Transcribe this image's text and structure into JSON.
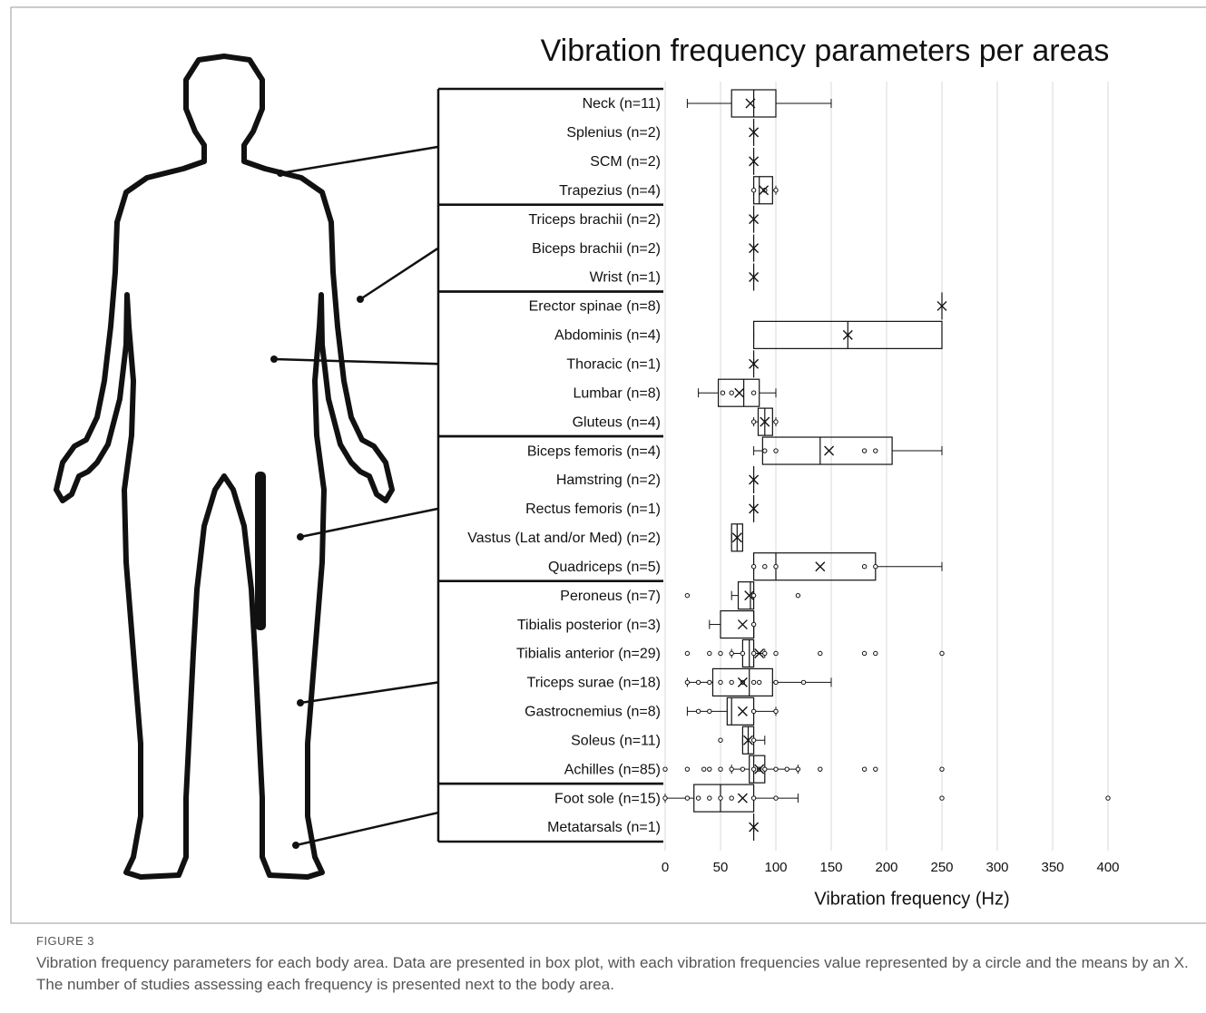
{
  "figure": {
    "label": "FIGURE 3",
    "caption": "Vibration frequency parameters for each body area. Data are presented in box plot, with each vibration frequencies value represented by a circle and the means by an X. The number of studies assessing each frequency is presented next to the body area."
  },
  "chart_data": {
    "type": "box",
    "title": "Vibration frequency parameters per areas",
    "x_label": "Vibration frequency (Hz)",
    "orientation": "horizontal",
    "color": "#111111",
    "grid": true,
    "xlim": [
      0,
      430
    ],
    "xticks": [
      0,
      50,
      100,
      150,
      200,
      250,
      300,
      350,
      400
    ],
    "categories": [
      "Neck (n=11)",
      "Splenius (n=2)",
      "SCM (n=2)",
      "Trapezius (n=4)",
      "Triceps brachii (n=2)",
      "Biceps brachii (n=2)",
      "Wrist (n=1)",
      "Erector spinae (n=8)",
      "Abdominis (n=4)",
      "Thoracic (n=1)",
      "Lumbar (n=8)",
      "Gluteus (n=4)",
      "Biceps femoris (n=4)",
      "Hamstring (n=2)",
      "Rectus femoris (n=1)",
      "Vastus (Lat and/or Med) (n=2)",
      "Quadriceps (n=5)",
      "Peroneus (n=7)",
      "Tibialis posterior (n=3)",
      "Tibialis anterior (n=29)",
      "Triceps surae (n=18)",
      "Gastrocnemius (n=8)",
      "Soleus (n=11)",
      "Achilles (n=85)",
      "Foot sole (n=15)",
      "Metatarsals (n=1)"
    ],
    "boxes": [
      {
        "min": 20,
        "q1": 60,
        "median": 80,
        "q3": 100,
        "max": 150,
        "mean": 77,
        "points": []
      },
      {
        "min": 80,
        "q1": 80,
        "median": 80,
        "q3": 80,
        "max": 80,
        "mean": 80,
        "points": []
      },
      {
        "min": 80,
        "q1": 80,
        "median": 80,
        "q3": 80,
        "max": 80,
        "mean": 80,
        "points": []
      },
      {
        "min": 80,
        "q1": 80,
        "median": 85,
        "q3": 97,
        "max": 100,
        "mean": 89,
        "points": [
          80,
          90,
          100
        ]
      },
      {
        "min": 80,
        "q1": 80,
        "median": 80,
        "q3": 80,
        "max": 80,
        "mean": 80,
        "points": []
      },
      {
        "min": 80,
        "q1": 80,
        "median": 80,
        "q3": 80,
        "max": 80,
        "mean": 80,
        "points": []
      },
      {
        "min": 80,
        "q1": 80,
        "median": 80,
        "q3": 80,
        "max": 80,
        "mean": 80,
        "points": []
      },
      {
        "min": 250,
        "q1": 250,
        "median": 250,
        "q3": 250,
        "max": 250,
        "mean": 250,
        "points": []
      },
      {
        "min": 80,
        "q1": 80,
        "median": 165,
        "q3": 250,
        "max": 250,
        "mean": 165,
        "points": []
      },
      {
        "min": 80,
        "q1": 80,
        "median": 80,
        "q3": 80,
        "max": 80,
        "mean": 80,
        "points": []
      },
      {
        "min": 30,
        "q1": 48,
        "median": 71,
        "q3": 85,
        "max": 100,
        "mean": 67,
        "points": [
          52,
          60,
          80
        ]
      },
      {
        "min": 80,
        "q1": 84,
        "median": 90,
        "q3": 97,
        "max": 100,
        "mean": 90,
        "points": [
          80,
          100
        ]
      },
      {
        "min": 80,
        "q1": 88,
        "median": 140,
        "q3": 205,
        "max": 250,
        "mean": 148,
        "points": [
          90,
          100,
          180,
          190
        ]
      },
      {
        "min": 80,
        "q1": 80,
        "median": 80,
        "q3": 80,
        "max": 80,
        "mean": 80,
        "points": []
      },
      {
        "min": 80,
        "q1": 80,
        "median": 80,
        "q3": 80,
        "max": 80,
        "mean": 80,
        "points": []
      },
      {
        "min": 60,
        "q1": 60,
        "median": 65,
        "q3": 70,
        "max": 70,
        "mean": 65,
        "points": []
      },
      {
        "min": 80,
        "q1": 80,
        "median": 100,
        "q3": 190,
        "max": 250,
        "mean": 140,
        "points": [
          80,
          90,
          100,
          180,
          190
        ]
      },
      {
        "min": 60,
        "q1": 66,
        "median": 77,
        "q3": 80,
        "max": 80,
        "mean": 76,
        "points": [
          20,
          80,
          120
        ]
      },
      {
        "min": 40,
        "q1": 50,
        "median": 80,
        "q3": 80,
        "max": 80,
        "mean": 70,
        "points": [
          80
        ]
      },
      {
        "min": 60,
        "q1": 70,
        "median": 76,
        "q3": 80,
        "max": 90,
        "mean": 85,
        "points": [
          20,
          40,
          50,
          60,
          70,
          80,
          90,
          100,
          140,
          180,
          190,
          250
        ]
      },
      {
        "min": 20,
        "q1": 43,
        "median": 76,
        "q3": 97,
        "max": 150,
        "mean": 70,
        "points": [
          20,
          30,
          40,
          50,
          60,
          70,
          80,
          85,
          100,
          125
        ]
      },
      {
        "min": 20,
        "q1": 56,
        "median": 60,
        "q3": 80,
        "max": 100,
        "mean": 70,
        "points": [
          30,
          40,
          80,
          100
        ]
      },
      {
        "min": 70,
        "q1": 70,
        "median": 75,
        "q3": 80,
        "max": 90,
        "mean": 75,
        "points": [
          50,
          80
        ]
      },
      {
        "min": 60,
        "q1": 76,
        "median": 80,
        "q3": 90,
        "max": 120,
        "mean": 85,
        "points": [
          0,
          20,
          35,
          40,
          50,
          60,
          70,
          80,
          85,
          90,
          100,
          110,
          120,
          140,
          180,
          190,
          250
        ]
      },
      {
        "min": 0,
        "q1": 26,
        "median": 50,
        "q3": 80,
        "max": 120,
        "mean": 70,
        "points": [
          0,
          20,
          30,
          40,
          50,
          60,
          80,
          100,
          250,
          400
        ]
      },
      {
        "min": 80,
        "q1": 80,
        "median": 80,
        "q3": 80,
        "max": 80,
        "mean": 80,
        "points": []
      }
    ]
  }
}
